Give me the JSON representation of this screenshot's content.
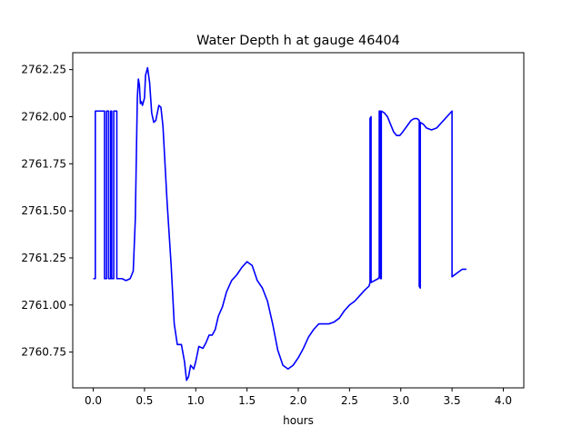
{
  "chart_data": {
    "type": "line",
    "title": "Water Depth h at gauge 46404",
    "xlabel": "hours",
    "ylabel": "",
    "xlim": [
      -0.2,
      4.2
    ],
    "ylim": [
      2760.56,
      2762.34
    ],
    "xticks": [
      0.0,
      0.5,
      1.0,
      1.5,
      2.0,
      2.5,
      3.0,
      3.5,
      4.0
    ],
    "xtick_labels": [
      "0.0",
      "0.5",
      "1.0",
      "1.5",
      "2.0",
      "2.5",
      "3.0",
      "3.5",
      "4.0"
    ],
    "yticks": [
      2760.75,
      2761.0,
      2761.25,
      2761.5,
      2761.75,
      2762.0,
      2762.25
    ],
    "ytick_labels": [
      "2760.75",
      "2761.00",
      "2761.25",
      "2761.50",
      "2761.75",
      "2762.00",
      "2762.25"
    ],
    "grid": false,
    "series": [
      {
        "color": "#0000ff",
        "points": [
          [
            0.0,
            2761.14
          ],
          [
            0.02,
            2761.14
          ],
          [
            0.02,
            2762.03
          ],
          [
            0.11,
            2762.03
          ],
          [
            0.11,
            2761.14
          ],
          [
            0.13,
            2761.14
          ],
          [
            0.13,
            2762.03
          ],
          [
            0.15,
            2762.03
          ],
          [
            0.15,
            2761.14
          ],
          [
            0.17,
            2761.14
          ],
          [
            0.17,
            2762.03
          ],
          [
            0.18,
            2762.03
          ],
          [
            0.18,
            2761.14
          ],
          [
            0.2,
            2761.14
          ],
          [
            0.2,
            2762.03
          ],
          [
            0.23,
            2762.03
          ],
          [
            0.23,
            2761.14
          ],
          [
            0.28,
            2761.14
          ],
          [
            0.32,
            2761.13
          ],
          [
            0.36,
            2761.14
          ],
          [
            0.39,
            2761.18
          ],
          [
            0.41,
            2761.45
          ],
          [
            0.43,
            2762.1
          ],
          [
            0.44,
            2762.2
          ],
          [
            0.45,
            2762.17
          ],
          [
            0.46,
            2762.07
          ],
          [
            0.47,
            2762.08
          ],
          [
            0.48,
            2762.06
          ],
          [
            0.5,
            2762.1
          ],
          [
            0.51,
            2762.22
          ],
          [
            0.53,
            2762.26
          ],
          [
            0.55,
            2762.18
          ],
          [
            0.57,
            2762.02
          ],
          [
            0.59,
            2761.97
          ],
          [
            0.61,
            2761.98
          ],
          [
            0.64,
            2762.06
          ],
          [
            0.66,
            2762.05
          ],
          [
            0.68,
            2761.95
          ],
          [
            0.72,
            2761.55
          ],
          [
            0.76,
            2761.21
          ],
          [
            0.79,
            2760.9
          ],
          [
            0.82,
            2760.79
          ],
          [
            0.86,
            2760.79
          ],
          [
            0.89,
            2760.7
          ],
          [
            0.91,
            2760.6
          ],
          [
            0.93,
            2760.62
          ],
          [
            0.95,
            2760.68
          ],
          [
            0.98,
            2760.66
          ],
          [
            1.0,
            2760.7
          ],
          [
            1.03,
            2760.78
          ],
          [
            1.07,
            2760.77
          ],
          [
            1.1,
            2760.8
          ],
          [
            1.13,
            2760.84
          ],
          [
            1.16,
            2760.84
          ],
          [
            1.19,
            2760.87
          ],
          [
            1.22,
            2760.94
          ],
          [
            1.26,
            2760.99
          ],
          [
            1.3,
            2761.07
          ],
          [
            1.35,
            2761.13
          ],
          [
            1.4,
            2761.16
          ],
          [
            1.45,
            2761.2
          ],
          [
            1.5,
            2761.23
          ],
          [
            1.55,
            2761.21
          ],
          [
            1.6,
            2761.13
          ],
          [
            1.65,
            2761.09
          ],
          [
            1.7,
            2761.02
          ],
          [
            1.75,
            2760.9
          ],
          [
            1.8,
            2760.76
          ],
          [
            1.85,
            2760.68
          ],
          [
            1.9,
            2760.66
          ],
          [
            1.95,
            2760.68
          ],
          [
            2.0,
            2760.72
          ],
          [
            2.05,
            2760.77
          ],
          [
            2.1,
            2760.83
          ],
          [
            2.15,
            2760.87
          ],
          [
            2.2,
            2760.9
          ],
          [
            2.25,
            2760.9
          ],
          [
            2.3,
            2760.9
          ],
          [
            2.35,
            2760.91
          ],
          [
            2.4,
            2760.93
          ],
          [
            2.45,
            2760.97
          ],
          [
            2.5,
            2761.0
          ],
          [
            2.55,
            2761.02
          ],
          [
            2.6,
            2761.05
          ],
          [
            2.65,
            2761.08
          ],
          [
            2.69,
            2761.1
          ],
          [
            2.7,
            2761.12
          ],
          [
            2.7,
            2761.99
          ],
          [
            2.71,
            2762.0
          ],
          [
            2.71,
            2761.12
          ],
          [
            2.78,
            2761.14
          ],
          [
            2.79,
            2761.15
          ],
          [
            2.79,
            2762.03
          ],
          [
            2.8,
            2762.03
          ],
          [
            2.8,
            2761.14
          ],
          [
            2.81,
            2761.14
          ],
          [
            2.81,
            2762.03
          ],
          [
            2.84,
            2762.02
          ],
          [
            2.87,
            2762.0
          ],
          [
            2.9,
            2761.96
          ],
          [
            2.93,
            2761.92
          ],
          [
            2.96,
            2761.9
          ],
          [
            2.99,
            2761.9
          ],
          [
            3.02,
            2761.92
          ],
          [
            3.06,
            2761.95
          ],
          [
            3.1,
            2761.98
          ],
          [
            3.13,
            2761.99
          ],
          [
            3.16,
            2761.99
          ],
          [
            3.18,
            2761.98
          ],
          [
            3.18,
            2761.1
          ],
          [
            3.19,
            2761.09
          ],
          [
            3.19,
            2761.97
          ],
          [
            3.22,
            2761.96
          ],
          [
            3.25,
            2761.94
          ],
          [
            3.3,
            2761.93
          ],
          [
            3.35,
            2761.94
          ],
          [
            3.4,
            2761.97
          ],
          [
            3.45,
            2762.0
          ],
          [
            3.5,
            2762.03
          ],
          [
            3.5,
            2761.15
          ],
          [
            3.55,
            2761.17
          ],
          [
            3.6,
            2761.19
          ],
          [
            3.64,
            2761.19
          ]
        ]
      }
    ]
  }
}
